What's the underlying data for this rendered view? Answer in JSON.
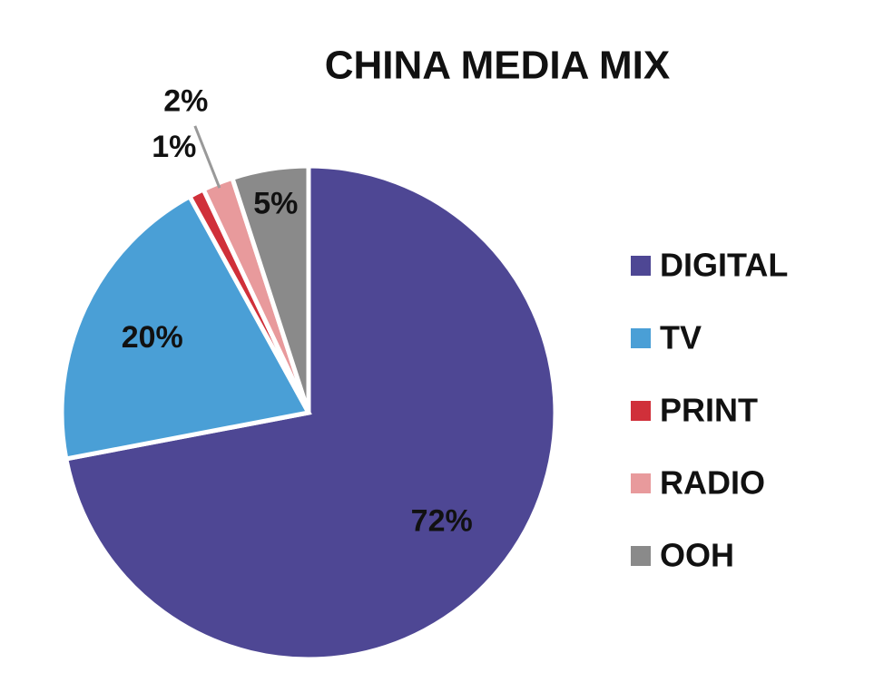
{
  "chart_data": {
    "type": "pie",
    "title": "CHINA MEDIA MIX",
    "categories": [
      "DIGITAL",
      "TV",
      "PRINT",
      "RADIO",
      "OOH"
    ],
    "values": [
      72,
      20,
      1,
      2,
      5
    ],
    "value_labels": [
      "72%",
      "20%",
      "1%",
      "2%",
      "5%"
    ],
    "colors": [
      "#4e4794",
      "#4a9fd6",
      "#d0303a",
      "#e89a9c",
      "#8a8a8a"
    ],
    "legend": "right"
  }
}
